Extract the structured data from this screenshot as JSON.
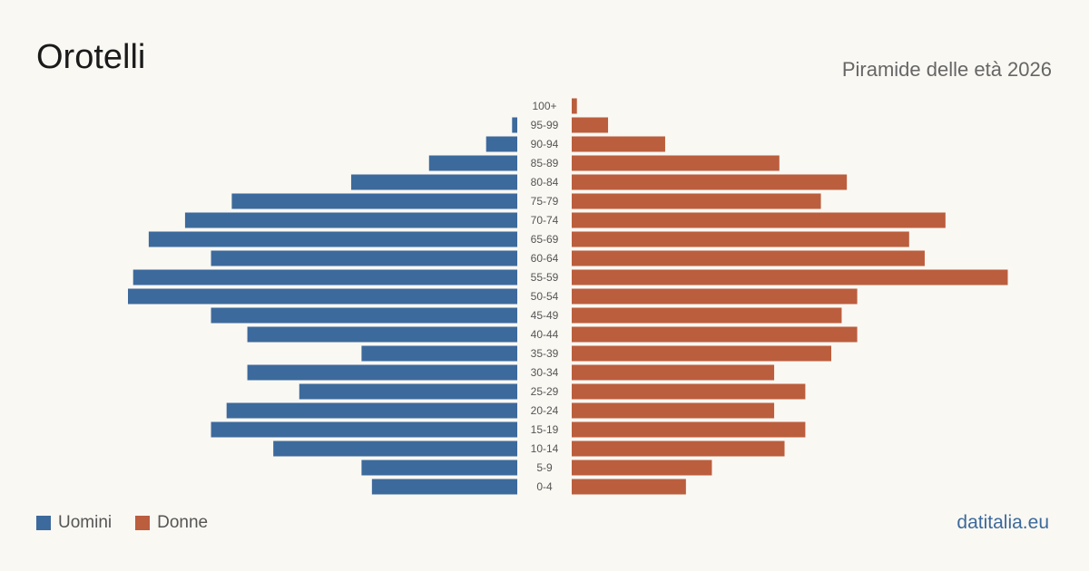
{
  "title": "Orotelli",
  "subtitle": "Piramide delle età 2026",
  "source": "datitalia.eu",
  "colors": {
    "men": "#3d6a9c",
    "women": "#bb5e3e"
  },
  "legend": {
    "men_label": "Uomini",
    "women_label": "Donne"
  },
  "chart_data": {
    "type": "bar",
    "orientation": "horizontal-pyramid",
    "categories": [
      "0-4",
      "5-9",
      "10-14",
      "15-19",
      "20-24",
      "25-29",
      "30-34",
      "35-39",
      "40-44",
      "45-49",
      "50-54",
      "55-59",
      "60-64",
      "65-69",
      "70-74",
      "75-79",
      "80-84",
      "85-89",
      "90-94",
      "95-99",
      "100+"
    ],
    "series": [
      {
        "name": "Uomini",
        "values": [
          28,
          30,
          47,
          59,
          56,
          42,
          52,
          30,
          52,
          59,
          75,
          74,
          59,
          71,
          64,
          55,
          32,
          17,
          6,
          1,
          0
        ]
      },
      {
        "name": "Donne",
        "values": [
          22,
          27,
          41,
          45,
          39,
          45,
          39,
          50,
          55,
          52,
          55,
          84,
          68,
          65,
          72,
          48,
          53,
          40,
          18,
          7,
          1
        ]
      }
    ],
    "legend_position": "bottom-left",
    "grid": false
  }
}
